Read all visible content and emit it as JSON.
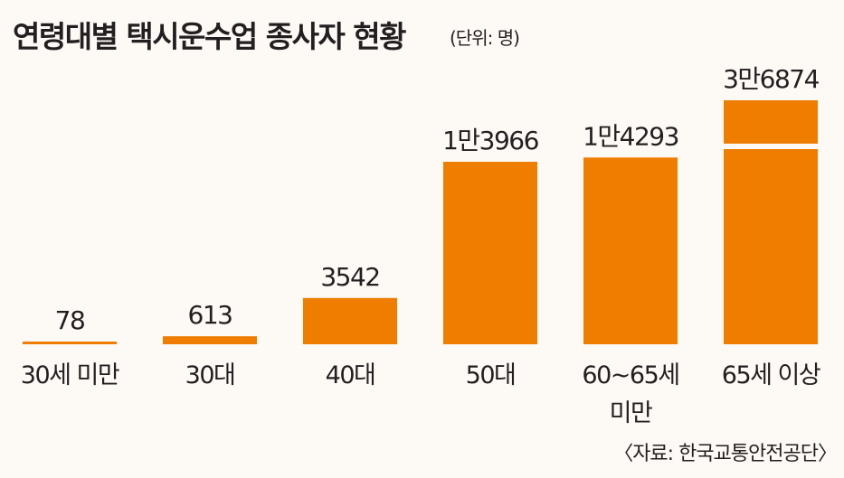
{
  "title": "연령대별 택시운수업 종사자 현황",
  "unit": "(단위: 명)",
  "source": "〈자료: 한국교통안전공단〉",
  "chart_data": {
    "type": "bar",
    "title": "연령대별 택시운수업 종사자 현황",
    "unit": "명",
    "categories": [
      "30세 미만",
      "30대",
      "40대",
      "50대",
      "60~65세 미만",
      "65세 이상"
    ],
    "category_lines": [
      [
        "30세 미만"
      ],
      [
        "30대"
      ],
      [
        "40대"
      ],
      [
        "50대"
      ],
      [
        "60~65세",
        "미만"
      ],
      [
        "65세 이상"
      ]
    ],
    "values": [
      78,
      613,
      3542,
      13966,
      14293,
      36874
    ],
    "value_labels": [
      "78",
      "613",
      "3542",
      "1만3966",
      "1만4293",
      "3만6874"
    ],
    "axis_break": true,
    "bar_color": "#ef7d00",
    "grid": false,
    "legend": "none"
  }
}
